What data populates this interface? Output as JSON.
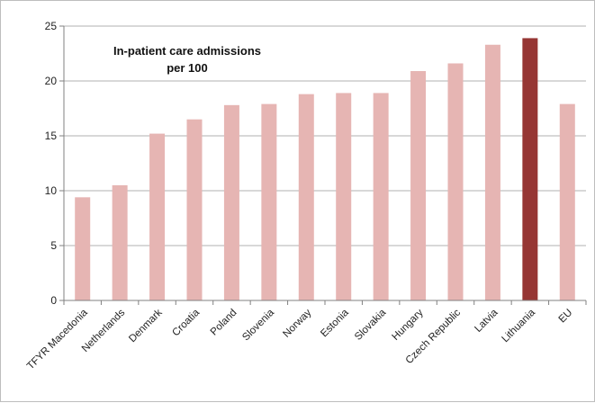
{
  "chart_data": {
    "type": "bar",
    "title_lines": [
      "In-patient care admissions",
      "per 100"
    ],
    "categories": [
      "TFYR Macedonia",
      "Netherlands",
      "Denmark",
      "Croatia",
      "Poland",
      "Slovenia",
      "Norway",
      "Estonia",
      "Slovakia",
      "Hungary",
      "Czech Republic",
      "Latvia",
      "Lithuania",
      "EU"
    ],
    "values": [
      9.4,
      10.5,
      15.2,
      16.5,
      17.8,
      17.9,
      18.8,
      18.9,
      18.9,
      20.9,
      21.6,
      23.3,
      23.9,
      17.9
    ],
    "highlight_index": 12,
    "ylim": [
      0,
      25
    ],
    "yticks": [
      0,
      5,
      10,
      15,
      20,
      25
    ],
    "colors": {
      "bar": "#e6b5b3",
      "highlight": "#963634",
      "axis": "#808080",
      "grid": "#b0b0b0"
    },
    "grid": true,
    "legend": "none"
  }
}
